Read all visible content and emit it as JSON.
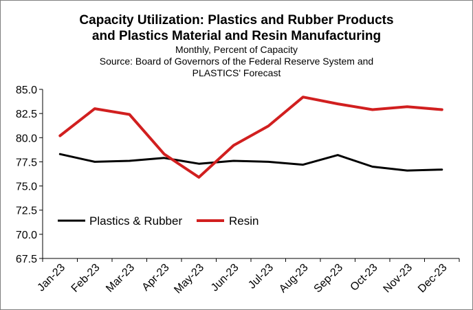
{
  "chart_data": {
    "type": "line",
    "title": [
      "Capacity Utilization:  Plastics and Rubber Products",
      "and Plastics Material and Resin Manufacturing"
    ],
    "subtitle": [
      "Monthly,  Percent of Capacity",
      "Source: Board of Governors of the Federal Reserve System and",
      "PLASTICS' Forecast"
    ],
    "xlabel": "",
    "ylabel": "",
    "categories": [
      "Jan-23",
      "Feb-23",
      "Mar-23",
      "Apr-23",
      "May-23",
      "Jun-23",
      "Jul-23",
      "Aug-23",
      "Sep-23",
      "Oct-23",
      "Nov-23",
      "Dec-23"
    ],
    "ylim": [
      67.5,
      85.0
    ],
    "yticks": [
      "67.5",
      "70.0",
      "72.5",
      "75.0",
      "77.5",
      "80.0",
      "82.5",
      "85.0"
    ],
    "grid": false,
    "legend_position": "lower-left",
    "series": [
      {
        "name": "Plastics & Rubber",
        "color": "#000000",
        "values": [
          78.3,
          77.5,
          77.6,
          77.9,
          77.3,
          77.6,
          77.5,
          77.2,
          78.2,
          77.0,
          76.6,
          76.7
        ]
      },
      {
        "name": "Resin",
        "color": "#d11f1f",
        "values": [
          80.2,
          83.0,
          82.4,
          78.3,
          75.9,
          79.2,
          81.2,
          84.2,
          83.5,
          82.9,
          83.2,
          82.9
        ]
      }
    ]
  }
}
